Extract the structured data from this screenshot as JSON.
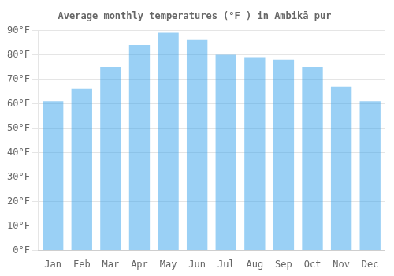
{
  "chart_data": {
    "type": "bar",
    "title": "Average monthly temperatures (°F ) in Ambikā pur",
    "categories": [
      "Jan",
      "Feb",
      "Mar",
      "Apr",
      "May",
      "Jun",
      "Jul",
      "Aug",
      "Sep",
      "Oct",
      "Nov",
      "Dec"
    ],
    "values": [
      61,
      66,
      75,
      84,
      89,
      86,
      80,
      79,
      78,
      75,
      67,
      61
    ],
    "ylim": [
      0,
      90
    ],
    "yticks": [
      {
        "value": 0,
        "label": "0°F"
      },
      {
        "value": 10,
        "label": "10°F"
      },
      {
        "value": 20,
        "label": "20°F"
      },
      {
        "value": 30,
        "label": "30°F"
      },
      {
        "value": 40,
        "label": "40°F"
      },
      {
        "value": 50,
        "label": "50°F"
      },
      {
        "value": 60,
        "label": "60°F"
      },
      {
        "value": 70,
        "label": "70°F"
      },
      {
        "value": 80,
        "label": "80°F"
      },
      {
        "value": 90,
        "label": "90°F"
      }
    ],
    "grid": true
  }
}
